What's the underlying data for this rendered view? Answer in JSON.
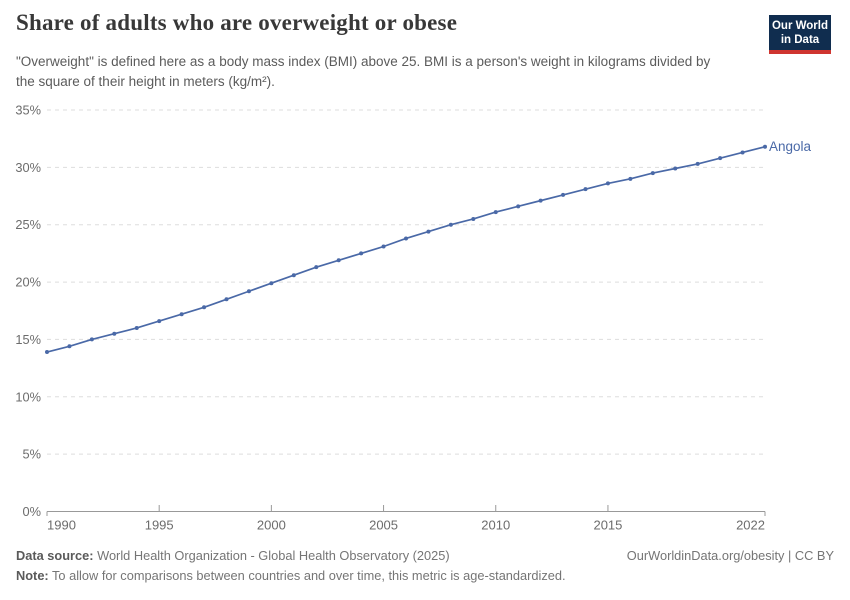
{
  "header": {
    "title": "Share of adults who are overweight or obese",
    "subtitle": "\"Overweight\" is defined here as a body mass index (BMI) above 25. BMI is a person's weight in kilograms divided by the square of their height in meters (kg/m²).",
    "logo": {
      "line1": "Our World",
      "line2": "in Data"
    }
  },
  "chart_data": {
    "type": "line",
    "title": "Share of adults who are overweight or obese",
    "x": [
      1990,
      1991,
      1992,
      1993,
      1994,
      1995,
      1996,
      1997,
      1998,
      1999,
      2000,
      2001,
      2002,
      2003,
      2004,
      2005,
      2006,
      2007,
      2008,
      2009,
      2010,
      2011,
      2012,
      2013,
      2014,
      2015,
      2016,
      2017,
      2018,
      2019,
      2020,
      2021,
      2022
    ],
    "series": [
      {
        "name": "Angola",
        "values": [
          13.9,
          14.4,
          15.0,
          15.5,
          16.0,
          16.6,
          17.2,
          17.8,
          18.5,
          19.2,
          19.9,
          20.6,
          21.3,
          21.9,
          22.5,
          23.1,
          23.8,
          24.4,
          25.0,
          25.5,
          26.1,
          26.6,
          27.1,
          27.6,
          28.1,
          28.6,
          29.0,
          29.5,
          29.9,
          30.3,
          30.8,
          31.3,
          31.8
        ],
        "color": "#4a69a7"
      }
    ],
    "xlabel": "",
    "ylabel": "",
    "xlim": [
      1990,
      2022
    ],
    "ylim": [
      0,
      35
    ],
    "x_ticks": [
      1990,
      1995,
      2000,
      2005,
      2010,
      2015,
      2022
    ],
    "y_ticks": [
      0,
      5,
      10,
      15,
      20,
      25,
      30,
      35
    ],
    "y_tick_suffix": "%",
    "grid": "horizontal-dashed",
    "legend_position": "end-of-line-label",
    "end_label": "Angola"
  },
  "footer": {
    "source_label": "Data source:",
    "source_text": "World Health Organization - Global Health Observatory (2025)",
    "link_text": "OurWorldinData.org/obesity | CC BY",
    "note_label": "Note:",
    "note_text": "To allow for comparisons between countries and over time, this metric is age-standardized."
  },
  "colors": {
    "line": "#4a69a7",
    "grid": "#dddddd",
    "axis": "#999999",
    "tick_label": "#6c6c6c",
    "logo_bg": "#102d4f",
    "logo_bar": "#cf3530"
  }
}
